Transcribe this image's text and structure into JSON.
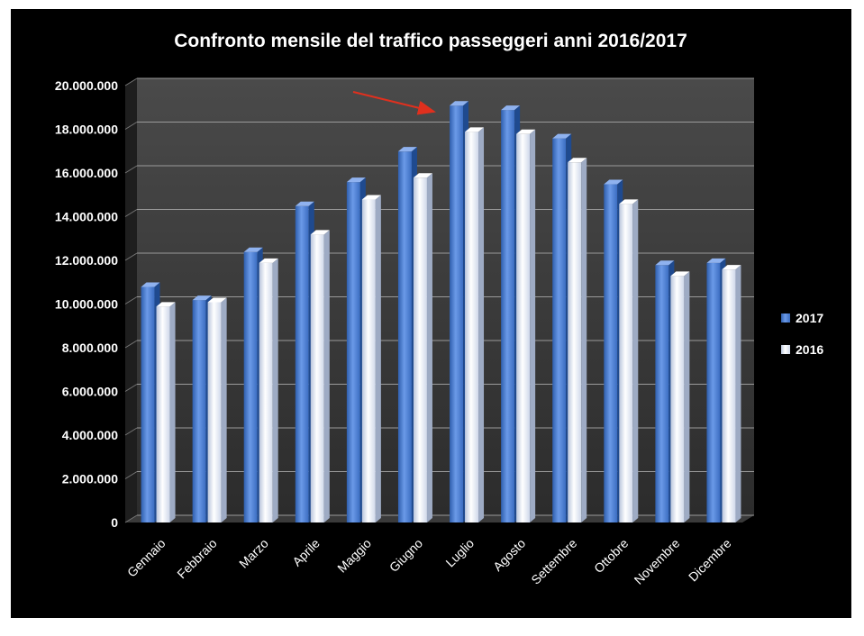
{
  "chart_data": {
    "type": "bar",
    "title": "Confronto mensile del traffico passeggeri  anni 2016/2017",
    "categories": [
      "Gennaio",
      "Febbraio",
      "Marzo",
      "Aprile",
      "Maggio",
      "Giugno",
      "Luglio",
      "Agosto",
      "Settembre",
      "Ottobre",
      "Novembre",
      "Dicembre"
    ],
    "series": [
      {
        "name": "2017",
        "color": "#4a7fd4",
        "values": [
          10700000,
          10100000,
          12300000,
          14400000,
          15500000,
          16900000,
          19000000,
          18800000,
          17500000,
          15400000,
          11700000,
          11800000
        ]
      },
      {
        "name": "2016",
        "color": "#dce4f2",
        "values": [
          9800000,
          10000000,
          11800000,
          13100000,
          14700000,
          15700000,
          17800000,
          17700000,
          16400000,
          14500000,
          11200000,
          11500000
        ]
      }
    ],
    "ylim": [
      0,
      20000000
    ],
    "yticks": [
      0,
      2000000,
      4000000,
      6000000,
      8000000,
      10000000,
      12000000,
      14000000,
      16000000,
      18000000,
      20000000
    ],
    "ytick_labels": [
      "0",
      "2.000.000",
      "4.000.000",
      "6.000.000",
      "8.000.000",
      "10.000.000",
      "12.000.000",
      "14.000.000",
      "16.000.000",
      "18.000.000",
      "20.000.000"
    ],
    "legend": [
      "2017",
      "2016"
    ],
    "annotation": {
      "kind": "arrow",
      "color": "#e0301e",
      "points_to": "Luglio"
    }
  }
}
